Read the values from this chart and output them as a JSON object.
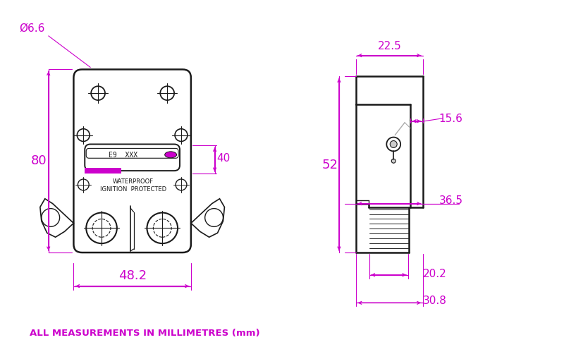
{
  "bg_color": "#ffffff",
  "dim_color": "#cc00cc",
  "line_color": "#1a1a1a",
  "gray_color": "#aaaaaa",
  "figsize": [
    8.0,
    5.1
  ],
  "dpi": 100,
  "annotation_text": "ALL MEASUREMENTS IN MILLIMETRES (mm)",
  "dims_left": {
    "width_label": "48.2",
    "height_label": "80",
    "inner_height_label": "40",
    "hole_label": "Ø6.6"
  },
  "dims_right": {
    "top_width_label": "22.5",
    "height_label": "52",
    "inner_width1_label": "15.6",
    "inner_width2_label": "36.5",
    "bottom_width1_label": "20.2",
    "bottom_width2_label": "30.8"
  }
}
